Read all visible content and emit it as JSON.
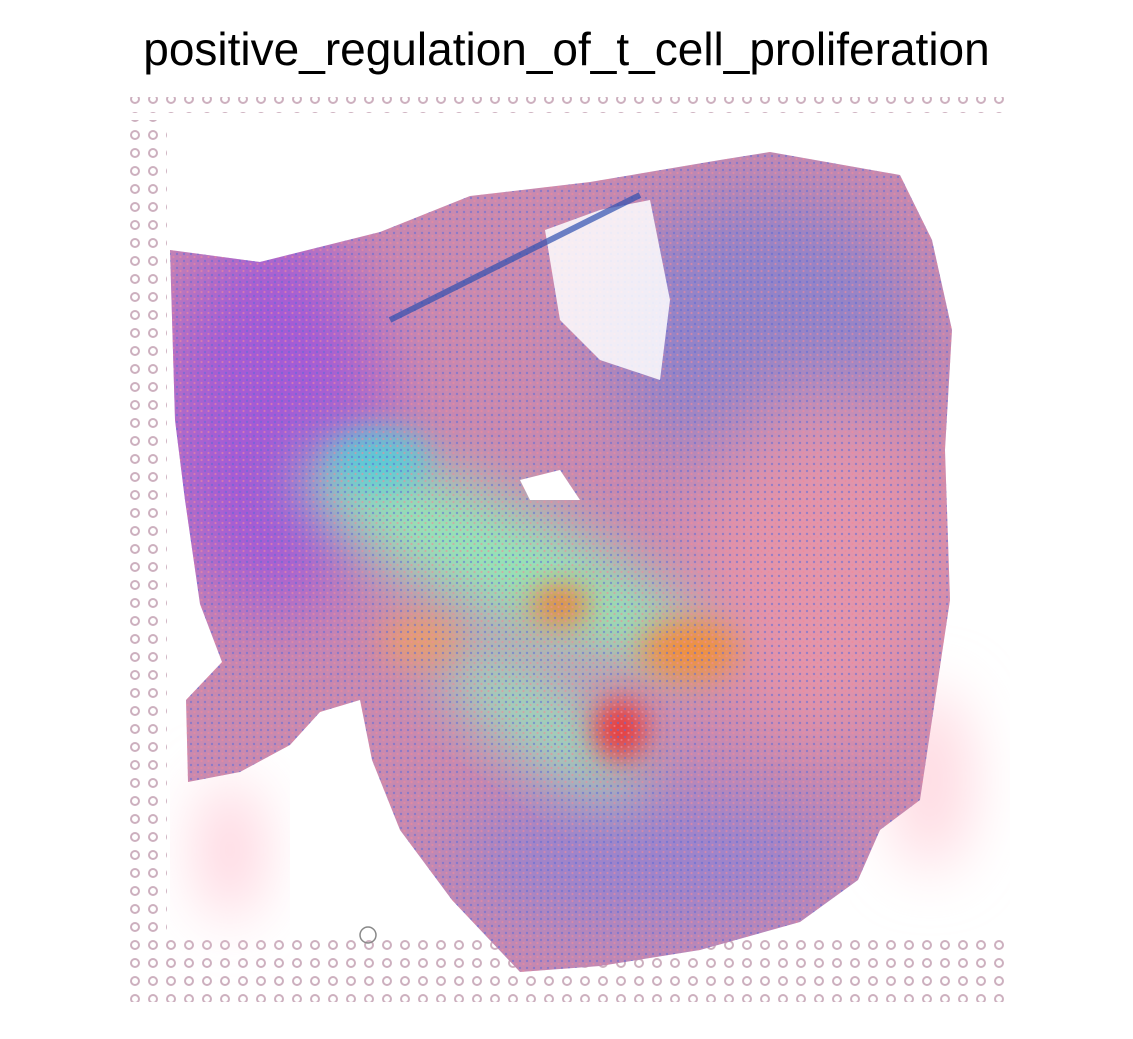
{
  "title": "positive_regulation_of_t_cell_proliferation"
}
